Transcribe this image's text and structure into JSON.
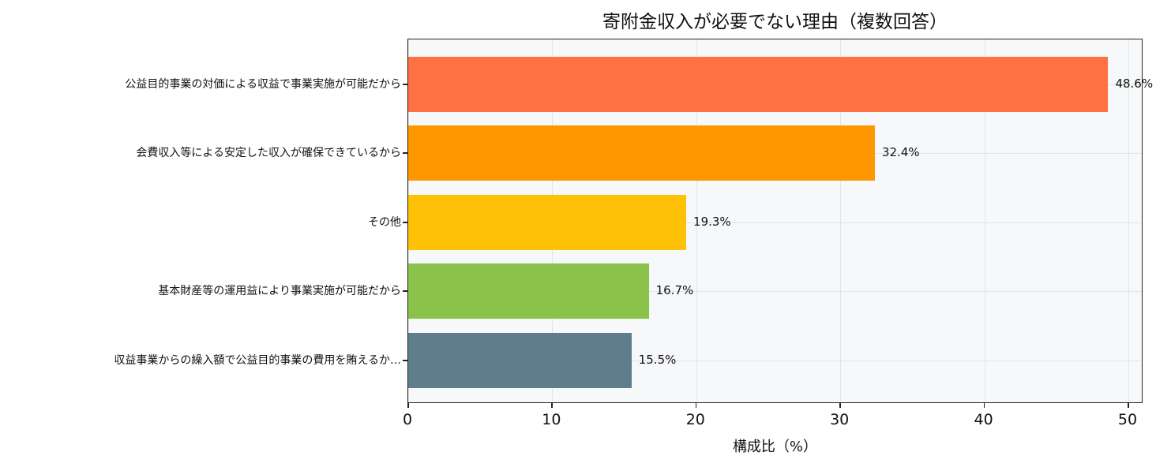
{
  "chart_data": {
    "type": "bar",
    "orientation": "horizontal",
    "title": "寄附金収入が必要でない理由（複数回答）",
    "xlabel": "構成比（%）",
    "ylabel": "",
    "xlim": [
      0,
      51
    ],
    "xticks": [
      "0",
      "10",
      "20",
      "30",
      "40",
      "50"
    ],
    "grid": true,
    "categories": [
      "公益目的事業の対価による収益で事業実施が可能だから",
      "会費収入等による安定した収入が確保できているから",
      "その他",
      "基本財産等の運用益により事業実施が可能だから",
      "収益事業からの繰入額で公益目的事業の費用を賄えるか…"
    ],
    "values": [
      48.6,
      32.4,
      19.3,
      16.7,
      15.5
    ],
    "value_labels": [
      "48.6%",
      "32.4%",
      "19.3%",
      "16.7%",
      "15.5%"
    ],
    "colors": [
      "#ff7043",
      "#ff9800",
      "#ffc107",
      "#8bc34a",
      "#607d8b"
    ]
  },
  "colors": {
    "plot_bg": "#f7f8fa",
    "grid": "#e2e4e7",
    "axis": "#222222"
  }
}
